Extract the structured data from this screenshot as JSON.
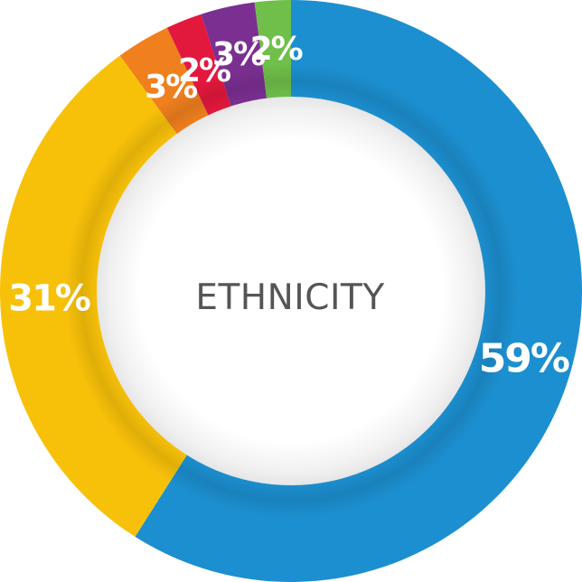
{
  "chart_data": {
    "type": "pie",
    "variant": "donut",
    "title": "ETHNICITY",
    "slices": [
      {
        "value": 59,
        "label": "59%",
        "color": "#1c8fd0"
      },
      {
        "value": 31,
        "label": "31%",
        "color": "#f8c109"
      },
      {
        "value": 3,
        "label": "3%",
        "color": "#f07f1e"
      },
      {
        "value": 2,
        "label": "2%",
        "color": "#e3183d"
      },
      {
        "value": 3,
        "label": "3%",
        "color": "#7b2f91"
      },
      {
        "value": 2,
        "label": "2%",
        "color": "#6fbf4a"
      }
    ],
    "start": "top",
    "direction": "clockwise",
    "legend": "none",
    "background_color": "#ffffff",
    "hole_color": "#ffffff",
    "label_color": "#ffffff",
    "title_color": "#555555"
  }
}
